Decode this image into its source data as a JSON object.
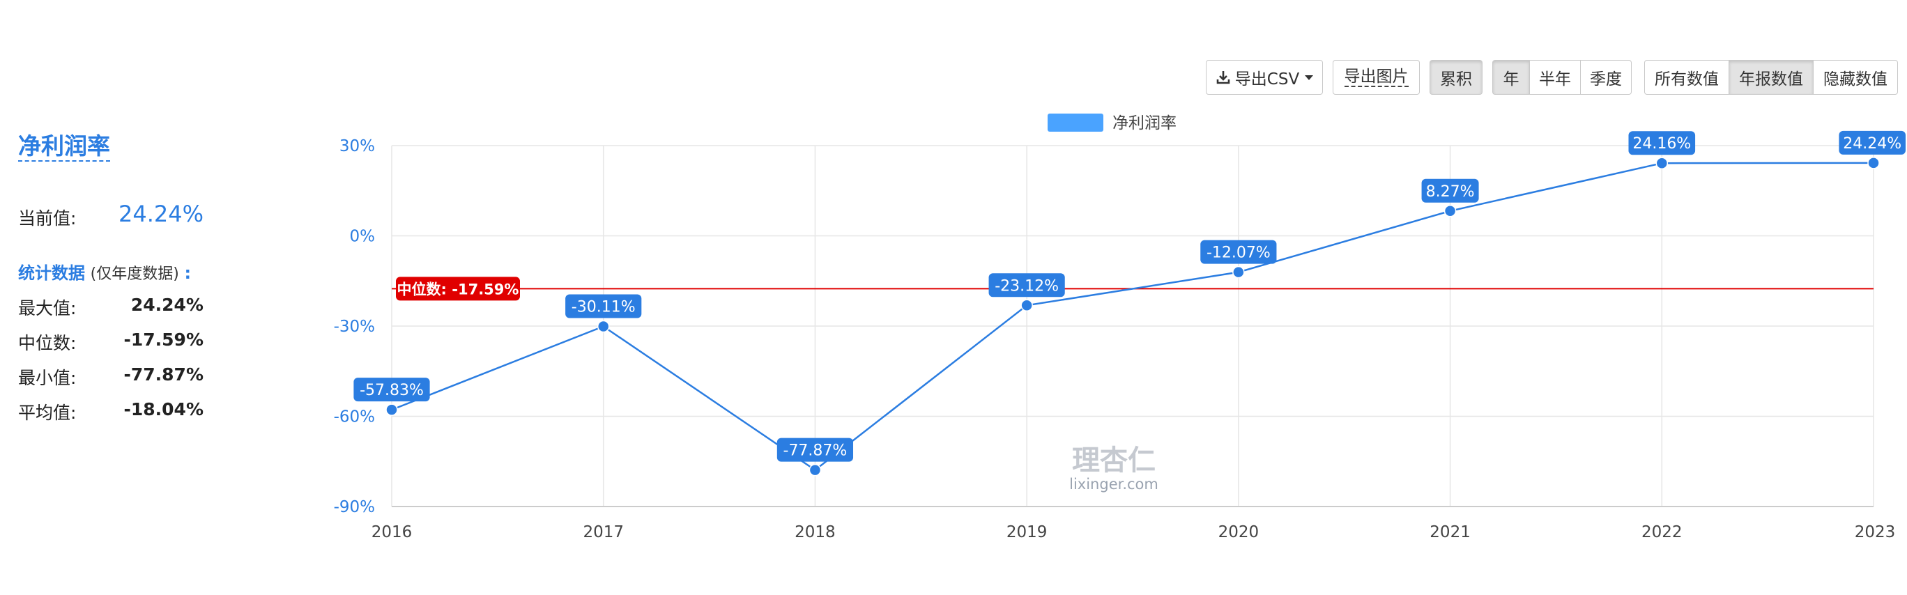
{
  "toolbar": {
    "export_csv": "导出CSV",
    "export_image": "导出图片",
    "cumulative": "累积",
    "period": [
      "年",
      "半年",
      "季度"
    ],
    "value_filter": [
      "所有数值",
      "年报数值",
      "隐藏数值"
    ]
  },
  "panel": {
    "title": "净利润率",
    "current_label": "当前值:",
    "current_value": "24.24%",
    "stats_title": "统计数据",
    "stats_note": "(仅年度数据)",
    "stats_colon": ":",
    "stats": [
      {
        "label": "最大值:",
        "value": "24.24%"
      },
      {
        "label": "中位数:",
        "value": "-17.59%"
      },
      {
        "label": "最小值:",
        "value": "-77.87%"
      },
      {
        "label": "平均值:",
        "value": "-18.04%"
      }
    ]
  },
  "watermark": {
    "cn": "理杏仁",
    "en": "lixinger.com"
  },
  "colors": {
    "series": "#2b7de1",
    "median": "#e00000",
    "legend": "#4aa3ff"
  },
  "chart_data": {
    "type": "line",
    "legend": "净利润率",
    "x": [
      "2016",
      "2017",
      "2018",
      "2019",
      "2020",
      "2021",
      "2022",
      "2023"
    ],
    "series": [
      {
        "name": "净利润率",
        "values": [
          -57.83,
          -30.11,
          -77.87,
          -23.12,
          -12.07,
          8.27,
          24.16,
          24.24
        ]
      }
    ],
    "data_labels": [
      "-57.83%",
      "-30.11%",
      "-77.87%",
      "-23.12%",
      "-12.07%",
      "8.27%",
      "24.16%",
      "24.24%"
    ],
    "ylim": [
      -90,
      30
    ],
    "yticks": [
      30,
      0,
      -30,
      -60,
      -90
    ],
    "ytick_labels": [
      "30%",
      "0%",
      "-30%",
      "-60%",
      "-90%"
    ],
    "median": {
      "value": -17.59,
      "label": "中位数: -17.59%"
    },
    "grid": true,
    "legend_position": "top-center"
  }
}
